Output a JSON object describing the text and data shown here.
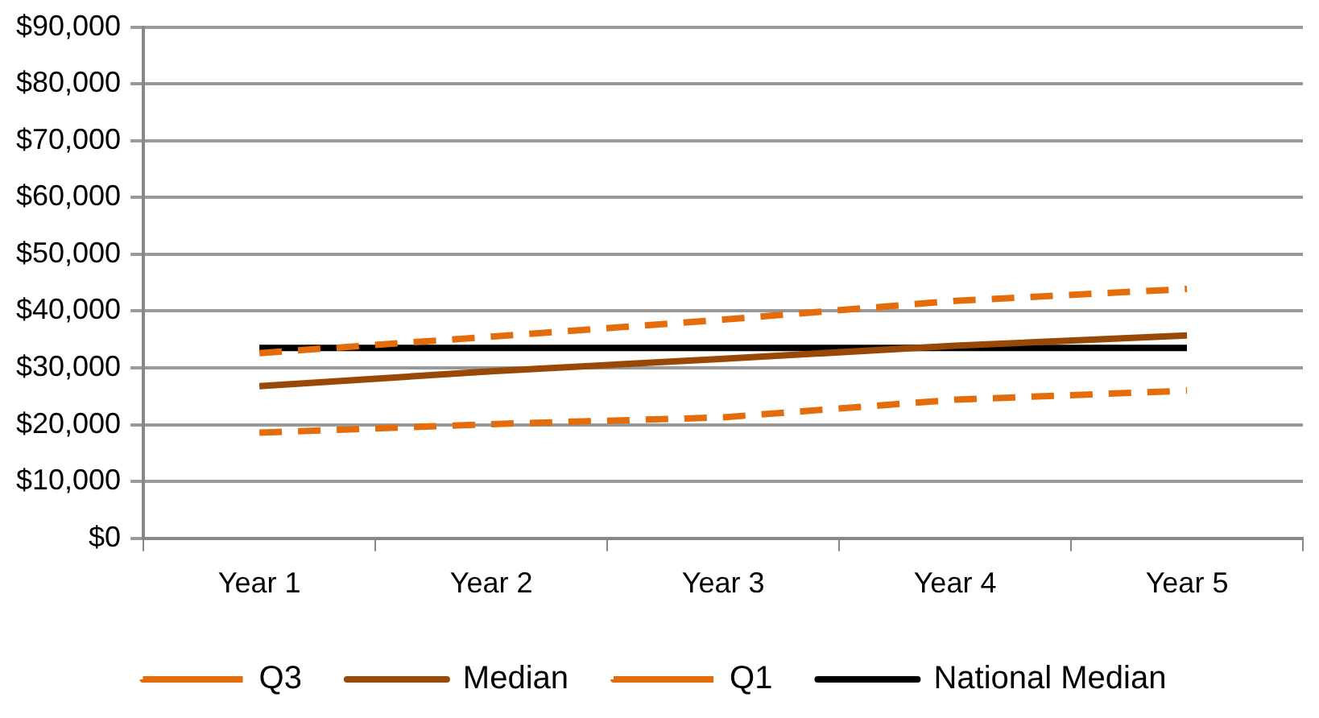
{
  "chart_data": {
    "type": "line",
    "categories": [
      "Year 1",
      "Year 2",
      "Year 3",
      "Year 4",
      "Year 5"
    ],
    "series": [
      {
        "name": "Q3",
        "color": "#e46c0a",
        "line_style": "dashed",
        "values": [
          32600,
          35500,
          38500,
          41800,
          43900
        ]
      },
      {
        "name": "Median",
        "color": "#984807",
        "line_style": "solid",
        "values": [
          26800,
          29400,
          31600,
          33900,
          35700
        ]
      },
      {
        "name": "Q1",
        "color": "#e46c0a",
        "line_style": "dashed",
        "values": [
          18600,
          20100,
          21300,
          24400,
          26000
        ]
      },
      {
        "name": "National Median",
        "color": "#000000",
        "line_style": "solid",
        "values": [
          33500,
          33500,
          33500,
          33500,
          33500
        ]
      }
    ],
    "ylim": [
      0,
      90000
    ],
    "yticks": [
      {
        "value": 0,
        "label": "$0"
      },
      {
        "value": 10000,
        "label": "$10,000"
      },
      {
        "value": 20000,
        "label": "$20,000"
      },
      {
        "value": 30000,
        "label": "$30,000"
      },
      {
        "value": 40000,
        "label": "$40,000"
      },
      {
        "value": 50000,
        "label": "$50,000"
      },
      {
        "value": 60000,
        "label": "$60,000"
      },
      {
        "value": 70000,
        "label": "$70,000"
      },
      {
        "value": 80000,
        "label": "$80,000"
      },
      {
        "value": 90000,
        "label": "$90,000"
      }
    ],
    "grid": "y",
    "legend": "bottom",
    "marker": "none"
  }
}
